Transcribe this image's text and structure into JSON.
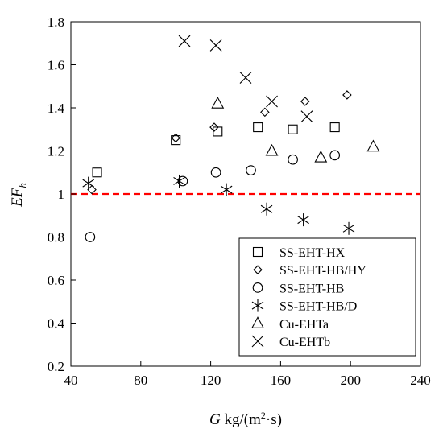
{
  "chart_data": {
    "type": "scatter",
    "xlabel": {
      "italic": "G",
      "rest": " kg/(m",
      "sup": "2",
      "after": "·s)"
    },
    "ylabel": {
      "main": "EF",
      "sub": "h"
    },
    "xlim": [
      40,
      240
    ],
    "ylim": [
      0.2,
      1.8
    ],
    "xticks": [
      "40",
      "80",
      "120",
      "160",
      "200",
      "240"
    ],
    "yticks": [
      "0.2",
      "0.4",
      "0.6",
      "0.8",
      "1",
      "1.2",
      "1.4",
      "1.6",
      "1.8"
    ],
    "grid": false,
    "reference_line": {
      "y": 1.0,
      "color": "#ff0000",
      "style": "dashed"
    },
    "legend_position": "bottom-right",
    "series": [
      {
        "name": "SS-EHT-HX",
        "marker": "square",
        "x": [
          55,
          100,
          124,
          147,
          167,
          191
        ],
        "y": [
          1.1,
          1.25,
          1.29,
          1.31,
          1.3,
          1.31
        ]
      },
      {
        "name": "SS-EHT-HB/HY",
        "marker": "diamond",
        "x": [
          52,
          100,
          122,
          151,
          174,
          198
        ],
        "y": [
          1.02,
          1.26,
          1.31,
          1.38,
          1.43,
          1.46
        ]
      },
      {
        "name": "SS-EHT-HB",
        "marker": "circle",
        "x": [
          51,
          104,
          123,
          143,
          167,
          191
        ],
        "y": [
          0.8,
          1.06,
          1.1,
          1.11,
          1.16,
          1.18
        ]
      },
      {
        "name": "SS-EHT-HB/D",
        "marker": "asterisk",
        "x": [
          50,
          102,
          129,
          152,
          173,
          199
        ],
        "y": [
          1.05,
          1.06,
          1.02,
          0.93,
          0.88,
          0.84
        ]
      },
      {
        "name": "Cu-EHTa",
        "marker": "triangle",
        "x": [
          124,
          155,
          183,
          213
        ],
        "y": [
          1.42,
          1.2,
          1.17,
          1.22
        ]
      },
      {
        "name": "Cu-EHTb",
        "marker": "x",
        "x": [
          105,
          123,
          140,
          155,
          175
        ],
        "y": [
          1.71,
          1.69,
          1.54,
          1.43,
          1.36
        ]
      }
    ]
  }
}
